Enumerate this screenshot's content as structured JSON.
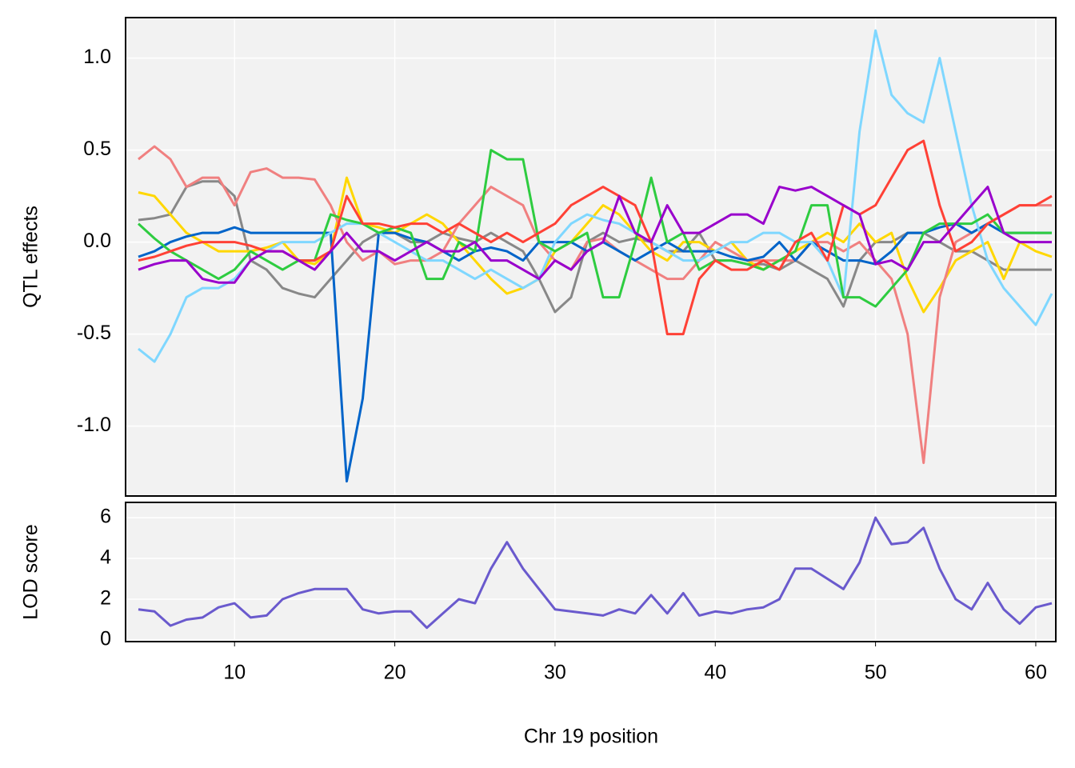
{
  "chart_data": [
    {
      "type": "line",
      "ylabel": "QTL effects",
      "x": [
        4,
        5,
        6,
        7,
        8,
        9,
        10,
        11,
        12,
        13,
        14,
        15,
        16,
        17,
        18,
        19,
        20,
        21,
        22,
        23,
        24,
        25,
        26,
        27,
        28,
        29,
        30,
        31,
        32,
        33,
        34,
        35,
        36,
        37,
        38,
        39,
        40,
        41,
        42,
        43,
        44,
        45,
        46,
        47,
        48,
        49,
        50,
        51,
        52,
        53,
        54,
        55,
        56,
        57,
        58,
        59,
        60,
        61
      ],
      "series": [
        {
          "color": "#888888",
          "values": [
            0.12,
            0.13,
            0.15,
            0.3,
            0.33,
            0.33,
            0.25,
            -0.1,
            -0.15,
            -0.25,
            -0.28,
            -0.3,
            -0.2,
            -0.1,
            0.0,
            0.05,
            0.05,
            0.0,
            0.0,
            0.05,
            0.02,
            0.0,
            0.05,
            0.0,
            -0.05,
            -0.2,
            -0.38,
            -0.3,
            0.0,
            0.05,
            0.0,
            0.02,
            0.0,
            -0.05,
            -0.05,
            0.05,
            -0.1,
            -0.1,
            -0.12,
            -0.12,
            -0.15,
            -0.1,
            -0.15,
            -0.2,
            -0.35,
            -0.1,
            0.0,
            0.0,
            0.05,
            0.05,
            0.0,
            -0.05,
            -0.05,
            -0.1,
            -0.15,
            -0.15,
            -0.15,
            -0.15
          ]
        },
        {
          "color": "#FFD700",
          "values": [
            0.27,
            0.25,
            0.15,
            0.05,
            0.0,
            -0.05,
            -0.05,
            -0.05,
            -0.03,
            0.0,
            -0.1,
            -0.12,
            -0.05,
            0.35,
            0.1,
            0.08,
            0.05,
            0.1,
            0.15,
            0.1,
            0.0,
            -0.1,
            -0.2,
            -0.28,
            -0.25,
            -0.2,
            -0.05,
            0.0,
            0.1,
            0.2,
            0.15,
            0.05,
            -0.05,
            -0.1,
            0.0,
            0.0,
            -0.05,
            0.0,
            -0.1,
            -0.15,
            -0.1,
            -0.05,
            0.0,
            0.05,
            0.0,
            0.1,
            0.0,
            0.05,
            -0.2,
            -0.38,
            -0.25,
            -0.1,
            -0.05,
            0.0,
            -0.2,
            0.0,
            -0.05,
            -0.08
          ]
        },
        {
          "color": "#F08080",
          "values": [
            0.45,
            0.52,
            0.45,
            0.3,
            0.35,
            0.35,
            0.2,
            0.38,
            0.4,
            0.35,
            0.35,
            0.34,
            0.2,
            0.0,
            -0.1,
            -0.05,
            -0.12,
            -0.1,
            -0.1,
            -0.05,
            0.1,
            0.2,
            0.3,
            0.25,
            0.2,
            0.0,
            -0.1,
            -0.15,
            0.0,
            0.02,
            -0.05,
            -0.1,
            -0.15,
            -0.2,
            -0.2,
            -0.1,
            0.0,
            -0.05,
            -0.1,
            -0.1,
            -0.1,
            -0.1,
            0.0,
            0.0,
            -0.05,
            0.0,
            -0.1,
            -0.2,
            -0.5,
            -1.2,
            -0.3,
            0.0,
            0.05,
            0.1,
            0.15,
            0.2,
            0.2,
            0.2
          ]
        },
        {
          "color": "#0064C9",
          "values": [
            -0.08,
            -0.05,
            0.0,
            0.03,
            0.05,
            0.05,
            0.08,
            0.05,
            0.05,
            0.05,
            0.05,
            0.05,
            0.05,
            -1.3,
            -0.85,
            0.05,
            0.05,
            0.02,
            0.0,
            -0.05,
            -0.1,
            -0.05,
            -0.03,
            -0.05,
            -0.1,
            0.0,
            0.0,
            0.0,
            -0.05,
            0.0,
            -0.05,
            -0.1,
            -0.05,
            0.0,
            -0.05,
            -0.05,
            -0.05,
            -0.08,
            -0.1,
            -0.08,
            0.0,
            -0.1,
            0.0,
            -0.05,
            -0.1,
            -0.1,
            -0.12,
            -0.05,
            0.05,
            0.05,
            0.08,
            0.1,
            0.05,
            0.1,
            0.05,
            0.05,
            0.05,
            0.05
          ]
        },
        {
          "color": "#7FD7FF",
          "values": [
            -0.58,
            -0.65,
            -0.5,
            -0.3,
            -0.25,
            -0.25,
            -0.2,
            -0.1,
            -0.05,
            0.0,
            0.0,
            0.0,
            0.05,
            0.1,
            0.1,
            0.05,
            0.0,
            -0.05,
            -0.1,
            -0.1,
            -0.15,
            -0.2,
            -0.15,
            -0.2,
            -0.25,
            -0.2,
            0.0,
            0.1,
            0.15,
            0.12,
            0.1,
            0.05,
            0.0,
            -0.05,
            -0.1,
            -0.1,
            -0.05,
            0.0,
            0.0,
            0.05,
            0.05,
            0.0,
            0.0,
            -0.1,
            -0.3,
            0.6,
            1.15,
            0.8,
            0.7,
            0.65,
            1.0,
            0.6,
            0.2,
            -0.1,
            -0.25,
            -0.35,
            -0.45,
            -0.28
          ]
        },
        {
          "color": "#2ECC40",
          "values": [
            0.1,
            0.02,
            -0.05,
            -0.1,
            -0.15,
            -0.2,
            -0.15,
            -0.05,
            -0.1,
            -0.15,
            -0.1,
            -0.1,
            0.15,
            0.12,
            0.1,
            0.05,
            0.08,
            0.05,
            -0.2,
            -0.2,
            0.0,
            -0.05,
            0.5,
            0.45,
            0.45,
            0.0,
            -0.05,
            0.0,
            0.05,
            -0.3,
            -0.3,
            0.0,
            0.35,
            0.0,
            0.05,
            -0.15,
            -0.1,
            -0.1,
            -0.12,
            -0.15,
            -0.1,
            -0.05,
            0.2,
            0.2,
            -0.3,
            -0.3,
            -0.35,
            -0.25,
            -0.15,
            0.05,
            0.1,
            0.1,
            0.1,
            0.15,
            0.05,
            0.05,
            0.05,
            0.05
          ]
        },
        {
          "color": "#FF4136",
          "values": [
            -0.1,
            -0.08,
            -0.05,
            -0.02,
            0.0,
            0.0,
            0.0,
            -0.02,
            -0.05,
            -0.05,
            -0.1,
            -0.1,
            -0.05,
            0.25,
            0.1,
            0.1,
            0.08,
            0.1,
            0.1,
            0.05,
            0.1,
            0.05,
            0.0,
            0.05,
            0.0,
            0.05,
            0.1,
            0.2,
            0.25,
            0.3,
            0.25,
            0.2,
            0.0,
            -0.5,
            -0.5,
            -0.2,
            -0.1,
            -0.15,
            -0.15,
            -0.1,
            -0.15,
            0.0,
            0.05,
            -0.1,
            0.2,
            0.15,
            0.2,
            0.35,
            0.5,
            0.55,
            0.2,
            -0.05,
            0.0,
            0.1,
            0.15,
            0.2,
            0.2,
            0.25
          ]
        },
        {
          "color": "#9900CC",
          "values": [
            -0.15,
            -0.12,
            -0.1,
            -0.1,
            -0.2,
            -0.22,
            -0.22,
            -0.1,
            -0.05,
            -0.05,
            -0.1,
            -0.15,
            -0.05,
            0.05,
            -0.05,
            -0.05,
            -0.1,
            -0.05,
            0.0,
            -0.05,
            -0.05,
            0.0,
            -0.1,
            -0.1,
            -0.15,
            -0.2,
            -0.1,
            -0.15,
            -0.05,
            0.0,
            0.25,
            0.05,
            0.0,
            0.2,
            0.05,
            0.05,
            0.1,
            0.15,
            0.15,
            0.1,
            0.3,
            0.28,
            0.3,
            0.25,
            0.2,
            0.15,
            -0.12,
            -0.1,
            -0.15,
            0.0,
            0.0,
            0.1,
            0.2,
            0.3,
            0.05,
            0.0,
            0.0,
            0.0
          ]
        }
      ],
      "xlim": [
        3.2,
        61.25
      ],
      "ylim": [
        -1.38,
        1.22
      ],
      "yticks": [
        {
          "value": 1,
          "label": "1.0"
        },
        0.5,
        {
          "value": 0,
          "label": "0.0"
        },
        -0.5,
        {
          "value": -1,
          "label": "-1.0"
        }
      ],
      "grid": true
    },
    {
      "type": "line",
      "ylabel": "LOD score",
      "xlabel": "Chr 19 position",
      "x": [
        4,
        5,
        6,
        7,
        8,
        9,
        10,
        11,
        12,
        13,
        14,
        15,
        16,
        17,
        18,
        19,
        20,
        21,
        22,
        23,
        24,
        25,
        26,
        27,
        28,
        29,
        30,
        31,
        32,
        33,
        34,
        35,
        36,
        37,
        38,
        39,
        40,
        41,
        42,
        43,
        44,
        45,
        46,
        47,
        48,
        49,
        50,
        51,
        52,
        53,
        54,
        55,
        56,
        57,
        58,
        59,
        60,
        61
      ],
      "series": [
        {
          "color": "#6A5ACD",
          "values": [
            1.5,
            1.4,
            0.7,
            1.0,
            1.1,
            1.6,
            1.8,
            1.1,
            1.2,
            2.0,
            2.3,
            2.5,
            2.5,
            2.5,
            1.5,
            1.3,
            1.4,
            1.4,
            0.6,
            1.3,
            2.0,
            1.8,
            3.5,
            4.8,
            3.5,
            2.5,
            1.5,
            1.4,
            1.3,
            1.2,
            1.5,
            1.3,
            2.2,
            1.3,
            2.3,
            1.2,
            1.4,
            1.3,
            1.5,
            1.6,
            2.0,
            3.5,
            3.5,
            3.0,
            2.5,
            3.8,
            6.0,
            4.7,
            4.8,
            5.5,
            3.5,
            2.0,
            1.5,
            2.8,
            1.5,
            0.8,
            1.6,
            1.8
          ]
        }
      ],
      "xlim": [
        3.2,
        61.25
      ],
      "ylim": [
        -0.08,
        6.75
      ],
      "xticks": [
        10,
        20,
        30,
        40,
        50,
        60
      ],
      "yticks": [
        0,
        2,
        4,
        6
      ],
      "grid": true
    }
  ]
}
